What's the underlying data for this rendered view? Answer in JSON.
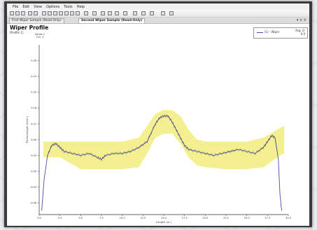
{
  "menu": [
    "File",
    "Edit",
    "View",
    "Options",
    "Tools",
    "Help"
  ],
  "tabs": [
    {
      "label": "First Wiper Sample (Read-Only)",
      "active": false
    },
    {
      "label": "Second Wiper Sample (Read-Only)",
      "active": true
    }
  ],
  "window_controls": "▾ × ×",
  "plot": {
    "title": "Wiper Profile",
    "subtitle": "[Profile 1]",
    "series_label": "Series 1",
    "series_sub": "S.D. 1"
  },
  "legend": {
    "entry": "(1) - Wiper",
    "right_line1": "Avg. 0:",
    "right_line2": "0.0"
  },
  "colors": {
    "band": "#f2ec7d",
    "profile_line": "#4a4aa8",
    "profile_detail": "#5a5a5a"
  },
  "chart_data": {
    "type": "line",
    "title": "Wiper Profile",
    "xlabel": "Length (in.)",
    "ylabel": "Force/Length (lb/in.)",
    "x_ticks": [
      "0.0",
      "2.5",
      "5.0",
      "7.5",
      "10.0",
      "12.5",
      "15.0",
      "17.5",
      "20.0",
      "22.5",
      "25.0",
      "27.5",
      "30.0"
    ],
    "y_ticks": [
      "0.28",
      "0.24",
      "0.20",
      "0.16",
      "0.12",
      "0.08",
      "0.04",
      "0.00",
      "-0.04",
      "-0.08"
    ],
    "ylim": [
      -0.11,
      0.32
    ],
    "xlim": [
      0,
      30
    ],
    "series": [
      {
        "x": [
          0.3,
          0.6,
          1.0,
          1.5,
          2.0,
          2.5,
          3.0,
          4.0,
          5.0,
          6.0,
          7.0,
          7.5,
          8.0,
          9.0,
          10.0,
          11.0,
          12.0,
          13.0,
          14.0,
          14.5,
          15.0,
          15.5,
          16.0,
          16.5,
          17.0,
          17.5,
          18.0,
          19.0,
          20.0,
          21.0,
          22.0,
          23.0,
          24.0,
          25.0,
          26.0,
          27.0,
          27.5,
          28.0,
          28.4,
          28.8,
          29.0,
          29.2
        ],
        "values": [
          -0.1,
          -0.02,
          0.04,
          0.065,
          0.07,
          0.06,
          0.05,
          0.045,
          0.04,
          0.045,
          0.035,
          0.03,
          0.04,
          0.045,
          0.045,
          0.05,
          0.06,
          0.075,
          0.12,
          0.135,
          0.14,
          0.14,
          0.125,
          0.105,
          0.085,
          0.065,
          0.055,
          0.05,
          0.045,
          0.04,
          0.045,
          0.05,
          0.055,
          0.05,
          0.045,
          0.06,
          0.075,
          0.09,
          0.085,
          0.03,
          -0.06,
          -0.1
        ]
      }
    ],
    "band": {
      "x": [
        0.5,
        2.5,
        5.0,
        7.5,
        10.0,
        12.0,
        13.0,
        14.0,
        15.0,
        16.0,
        17.0,
        18.0,
        19.0,
        20.0,
        22.5,
        25.0,
        27.0,
        29.0,
        29.5
      ],
      "upper": [
        0.075,
        0.075,
        0.075,
        0.075,
        0.075,
        0.085,
        0.115,
        0.145,
        0.155,
        0.155,
        0.14,
        0.105,
        0.08,
        0.075,
        0.075,
        0.075,
        0.085,
        0.11,
        0.115
      ],
      "lower": [
        0.035,
        0.035,
        0.005,
        0.005,
        0.005,
        0.01,
        0.045,
        0.085,
        0.095,
        0.095,
        0.07,
        0.035,
        0.015,
        0.01,
        0.005,
        0.005,
        0.01,
        0.04,
        0.045
      ]
    },
    "grid": false,
    "legend_position": "top-right"
  }
}
